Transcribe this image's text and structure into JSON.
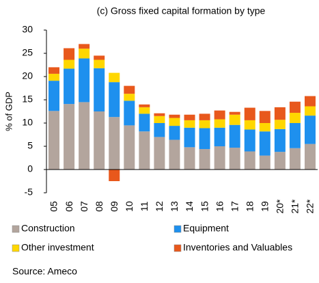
{
  "chart_data": {
    "type": "stacked_bar",
    "title": "(c) Gross fixed capital formation by type",
    "y_label": "% of GDP",
    "source": "Source: Ameco",
    "categories": [
      "05",
      "06",
      "07",
      "08",
      "09",
      "10",
      "11",
      "12",
      "13",
      "14",
      "15",
      "16",
      "17",
      "18",
      "19",
      "20*",
      "21*",
      "22*"
    ],
    "series": [
      {
        "name": "Construction",
        "color": "#b3a59d",
        "values": [
          12.6,
          14.1,
          14.5,
          12.5,
          11.3,
          9.5,
          8.2,
          7.0,
          6.4,
          4.8,
          4.4,
          5.0,
          4.7,
          3.9,
          3.0,
          3.8,
          4.6,
          5.5
        ]
      },
      {
        "name": "Equipment",
        "color": "#1e90ee",
        "values": [
          6.5,
          7.6,
          9.4,
          9.3,
          7.5,
          5.3,
          3.8,
          3.0,
          3.0,
          4.2,
          4.5,
          4.0,
          4.9,
          4.7,
          5.2,
          4.9,
          5.4,
          6.1
        ]
      },
      {
        "name": "Other investment",
        "color": "#ffd700",
        "values": [
          1.5,
          1.9,
          2.1,
          1.8,
          2.0,
          1.5,
          1.4,
          1.5,
          1.7,
          1.6,
          1.7,
          1.8,
          2.2,
          2.0,
          1.8,
          2.0,
          2.2,
          2.0
        ]
      },
      {
        "name": "Inventories and Valuables",
        "color": "#e8581c",
        "values": [
          1.4,
          2.5,
          1.0,
          0.9,
          -2.5,
          1.7,
          0.6,
          0.6,
          0.7,
          1.2,
          1.4,
          1.9,
          0.6,
          2.7,
          2.6,
          2.7,
          2.4,
          2.2
        ]
      }
    ],
    "ylim": [
      -5,
      30
    ],
    "yticks": [
      -5,
      0,
      5,
      10,
      15,
      20,
      25,
      30
    ],
    "legend": "bottom"
  }
}
